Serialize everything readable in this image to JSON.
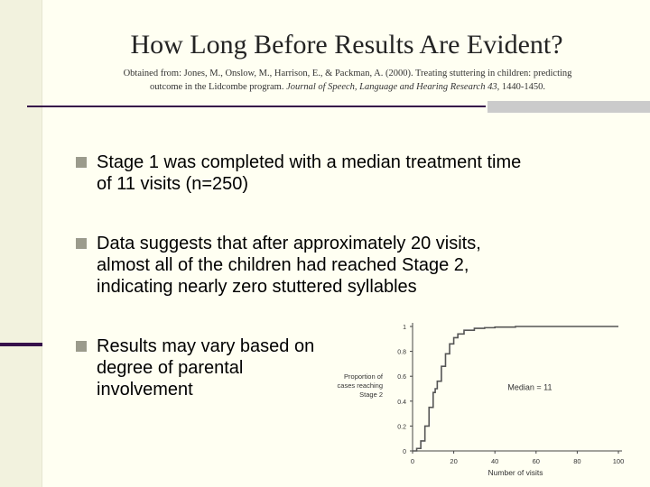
{
  "title": "How Long Before Results Are Evident?",
  "citation": {
    "line1": "Obtained from: Jones, M., Onslow, M., Harrison, E., & Packman, A. (2000). Treating stuttering in children: predicting",
    "line2_prefix": "outcome in the Lidcombe program. ",
    "journal": "Journal of Speech, Language and Hearing Research 43,",
    "pages": " 1440-1450."
  },
  "bullets": [
    {
      "text": "Stage 1 was completed with a median treatment time\nof 11 visits (n=250)"
    },
    {
      "text": "Data suggests that after approximately 20 visits,\nalmost all of the children had reached Stage 2,\nindicating nearly zero stuttered syllables"
    },
    {
      "text": "Results may vary based on\ndegree of parental\ninvolvement"
    }
  ],
  "colors": {
    "background": "#fffff2",
    "accent": "#36104a",
    "bullet_marker": "#9b9b8c"
  },
  "chart_data": {
    "type": "line",
    "title": "",
    "xlabel": "Number of visits",
    "ylabel_lines": [
      "Proportion of",
      "cases reaching",
      "Stage 2"
    ],
    "annotation": "Median = 11",
    "xlim": [
      0,
      100
    ],
    "ylim": [
      0,
      1
    ],
    "x_ticks": [
      "0",
      "20",
      "40",
      "60",
      "80",
      "100"
    ],
    "y_ticks": [
      "0",
      "0.2",
      "0.4",
      "0.6",
      "0.8",
      "1"
    ],
    "grid": false,
    "series": [
      {
        "x": [
          0,
          2,
          4,
          6,
          8,
          10,
          11,
          12,
          14,
          16,
          18,
          20,
          22,
          25,
          30,
          35,
          40,
          50,
          60,
          70,
          80,
          90,
          100
        ],
        "y": [
          0,
          0.02,
          0.08,
          0.2,
          0.35,
          0.47,
          0.5,
          0.56,
          0.68,
          0.78,
          0.86,
          0.91,
          0.94,
          0.97,
          0.985,
          0.99,
          0.995,
          1,
          1,
          1,
          1,
          1,
          1
        ]
      }
    ]
  }
}
